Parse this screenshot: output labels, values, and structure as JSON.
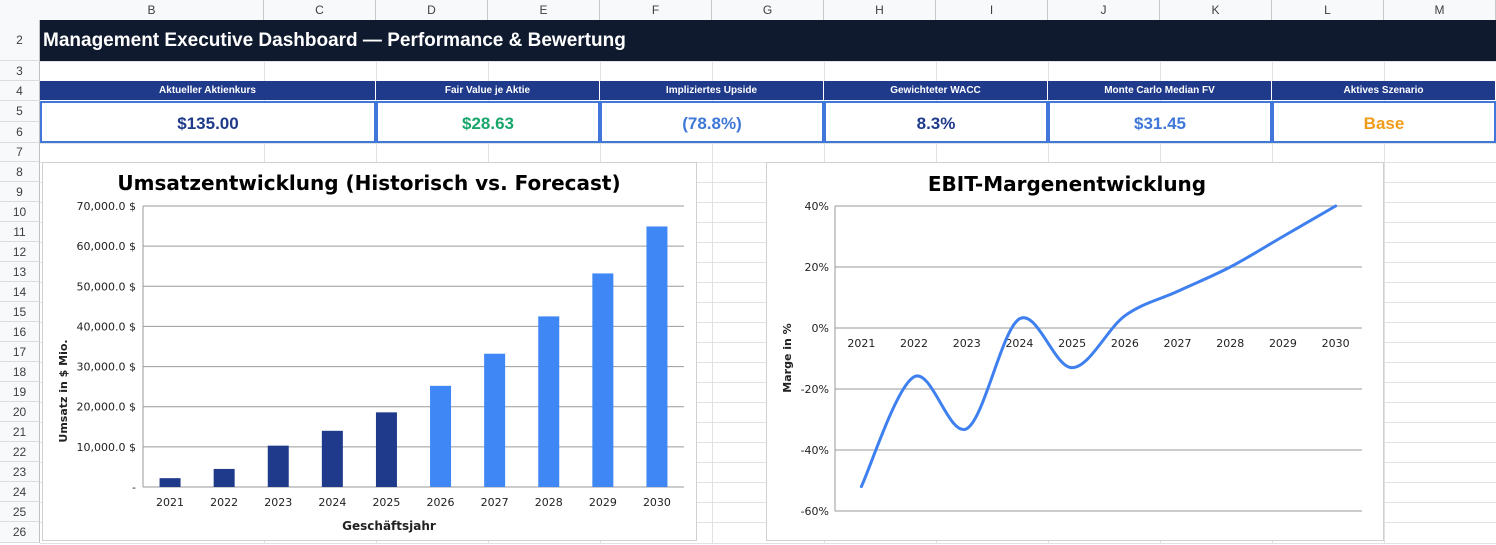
{
  "columns": [
    "B",
    "C",
    "D",
    "E",
    "F",
    "G",
    "H",
    "I",
    "J",
    "K",
    "L",
    "M"
  ],
  "rows": [
    "2",
    "3",
    "4",
    "5",
    "6",
    "7",
    "8",
    "9",
    "10",
    "11",
    "12",
    "13",
    "14",
    "15",
    "16",
    "17",
    "18",
    "19",
    "20",
    "21",
    "22",
    "23",
    "24",
    "25",
    "26"
  ],
  "title": "Management Executive Dashboard — Performance & Bewertung",
  "kpis": [
    {
      "label": "Aktueller Aktienkurs",
      "value": "$135.00",
      "color": "#1f3a8a"
    },
    {
      "label": "Fair Value je Aktie",
      "value": "$28.63",
      "color": "#1aa66b"
    },
    {
      "label": "Impliziertes Upside",
      "value": "(78.8%)",
      "color": "#3f78d8"
    },
    {
      "label": "Gewichteter WACC",
      "value": "8.3%",
      "color": "#1f3a8a"
    },
    {
      "label": "Monte Carlo Median FV",
      "value": "$31.45",
      "color": "#3f78d8"
    },
    {
      "label": "Aktives Szenario",
      "value": "Base",
      "color": "#f09c1a"
    }
  ],
  "chart_data": [
    {
      "type": "bar",
      "title": "Umsatzentwicklung (Historisch vs. Forecast)",
      "xlabel": "Geschäftsjahr",
      "ylabel": "Umsatz in $ Mio.",
      "categories": [
        "2021",
        "2022",
        "2023",
        "2024",
        "2025",
        "2026",
        "2027",
        "2028",
        "2029",
        "2030"
      ],
      "values": [
        2200,
        4500,
        10300,
        14000,
        18600,
        25200,
        33200,
        42500,
        53200,
        64900
      ],
      "historical_color": "#1f3a8a",
      "forecast_color": "#3f87f5",
      "forecast_from": "2026",
      "ylim": [
        0,
        70000
      ],
      "yticks": [
        "-",
        "10,000.0 $",
        "20,000.0 $",
        "30,000.0 $",
        "40,000.0 $",
        "50,000.0 $",
        "60,000.0 $",
        "70,000.0 $"
      ],
      "grid": true
    },
    {
      "type": "line",
      "title": "EBIT-Margenentwicklung",
      "xlabel": "",
      "ylabel": "Marge in %",
      "categories": [
        "2021",
        "2022",
        "2023",
        "2024",
        "2025",
        "2026",
        "2027",
        "2028",
        "2029",
        "2030"
      ],
      "values": [
        -52,
        -16,
        -33,
        3,
        -13,
        4,
        12,
        20,
        30,
        40
      ],
      "ylim": [
        -60,
        40
      ],
      "yticks": [
        "-60%",
        "-40%",
        "-20%",
        "0%",
        "20%",
        "40%"
      ],
      "color": "#3f80f0",
      "grid": true
    }
  ]
}
